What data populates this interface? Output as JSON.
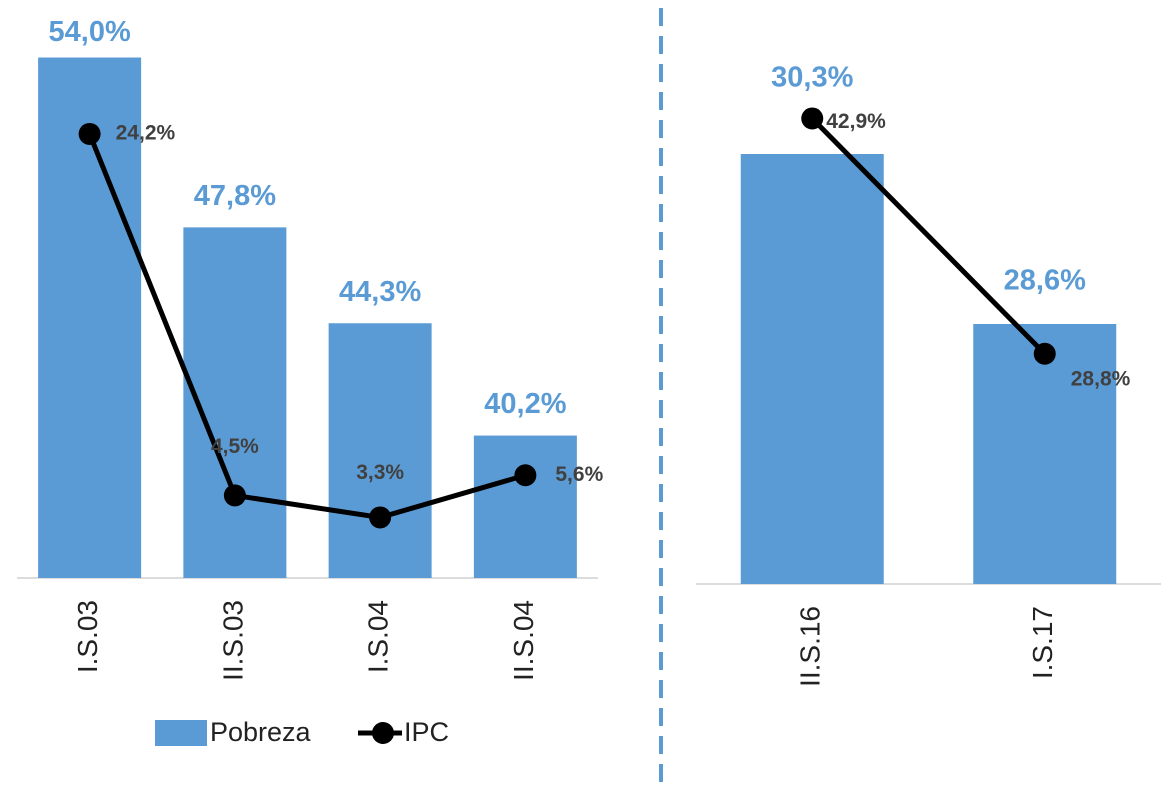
{
  "chart_data": [
    {
      "type": "combo",
      "categories": [
        "I.S.03",
        "II.S.03",
        "I.S.04",
        "II.S.04"
      ],
      "series": [
        {
          "name": "Pobreza",
          "type": "bar",
          "color": "#5b9bd5",
          "values": [
            54.0,
            47.8,
            44.3,
            40.2
          ],
          "value_labels": [
            "54,0%",
            "47,8%",
            "44,3%",
            "40,2%"
          ]
        },
        {
          "name": "IPC",
          "type": "line",
          "axis": "y2",
          "color": "#000000",
          "values": [
            24.2,
            4.5,
            3.3,
            5.6
          ],
          "value_labels": [
            "24,2%",
            "4,5%",
            "3,3%",
            "5,6%"
          ]
        }
      ],
      "ylim": [
        35,
        56.1
      ],
      "y2lim": [
        0,
        31.5
      ],
      "legend": "bottom"
    },
    {
      "type": "combo",
      "categories": [
        "II.S.16",
        "I.S.17"
      ],
      "series": [
        {
          "type": "bar",
          "color": "#5b9bd5",
          "values": [
            30.3,
            28.6
          ],
          "value_labels": [
            "30,3%",
            "28,6%"
          ]
        },
        {
          "type": "line",
          "axis": "y2",
          "color": "#000000",
          "values": [
            42.9,
            28.8
          ],
          "value_labels": [
            "42,9%",
            "28,8%"
          ]
        }
      ],
      "ylim": [
        26,
        31.84
      ],
      "y2lim": [
        15,
        50
      ]
    }
  ]
}
